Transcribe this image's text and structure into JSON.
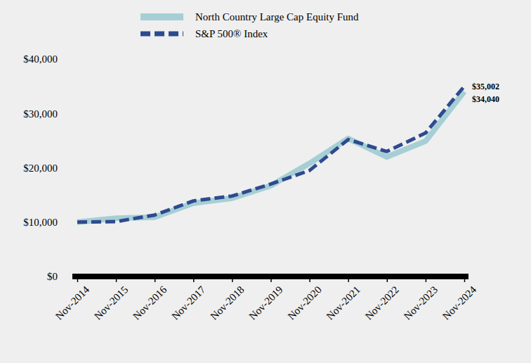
{
  "chart_data": {
    "type": "line",
    "categories": [
      "Nov-2014",
      "Nov-2015",
      "Nov-2016",
      "Nov-2017",
      "Nov-2018",
      "Nov-2019",
      "Nov-2020",
      "Nov-2021",
      "Nov-2022",
      "Nov-2023",
      "Nov-2024"
    ],
    "series": [
      {
        "name": "North Country Large Cap Equity Fund",
        "color": "#a6cfd5",
        "line_style": "solid",
        "values": [
          10000,
          10700,
          10900,
          13500,
          14400,
          16700,
          20800,
          25400,
          22000,
          24900,
          34040
        ],
        "value_labels": [
          null,
          null,
          null,
          null,
          null,
          null,
          null,
          null,
          null,
          null,
          "$34,040"
        ]
      },
      {
        "name": "S&P 500® Index",
        "color": "#2e4a8f",
        "line_style": "dashed",
        "values": [
          10000,
          10100,
          11300,
          13900,
          14800,
          17000,
          19500,
          25200,
          23000,
          26400,
          35002
        ],
        "value_labels": [
          null,
          null,
          null,
          null,
          null,
          null,
          null,
          null,
          null,
          null,
          "$35,002"
        ]
      }
    ],
    "ylim": [
      0,
      40000
    ],
    "yticks": [
      {
        "value": 0,
        "label": "$0"
      },
      {
        "value": 10000,
        "label": "$10,000"
      },
      {
        "value": 20000,
        "label": "$20,000"
      },
      {
        "value": 30000,
        "label": "$30,000"
      },
      {
        "value": 40000,
        "label": "$40,000"
      }
    ],
    "grid": false,
    "legend": "top"
  }
}
